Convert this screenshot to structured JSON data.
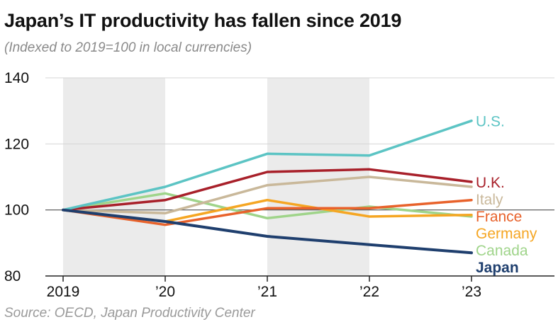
{
  "chart_data": {
    "type": "line",
    "title": "Japan’s IT productivity has fallen since 2019",
    "subtitle": "(Indexed to 2019=100 in local currencies)",
    "source": "Source: OECD, Japan Productivity Center",
    "categories": [
      "2019",
      "’20",
      "’21",
      "’22",
      "’23"
    ],
    "ylim": [
      80,
      140
    ],
    "yticks": [
      80,
      100,
      120,
      140
    ],
    "shaded_intervals": [
      [
        0,
        1
      ],
      [
        2,
        3
      ]
    ],
    "reference_line": 100,
    "series": [
      {
        "name": "U.S.",
        "color": "#5cc4c4",
        "bold": false,
        "values": [
          100,
          107,
          117,
          116.5,
          127
        ]
      },
      {
        "name": "U.K.",
        "color": "#a8202a",
        "bold": false,
        "values": [
          100,
          103,
          111.5,
          112.3,
          108.5
        ]
      },
      {
        "name": "Italy",
        "color": "#c9b89a",
        "bold": false,
        "values": [
          100,
          99,
          107.5,
          110,
          107
        ]
      },
      {
        "name": "France",
        "color": "#e8622b",
        "bold": false,
        "values": [
          100,
          95.5,
          100.5,
          100.5,
          103
        ]
      },
      {
        "name": "Germany",
        "color": "#f5a623",
        "bold": false,
        "values": [
          100,
          96.5,
          103,
          98,
          98.5
        ]
      },
      {
        "name": "Canada",
        "color": "#9fd48a",
        "bold": false,
        "values": [
          100,
          105,
          97.5,
          101,
          98
        ]
      },
      {
        "name": "Japan",
        "color": "#1f3f6e",
        "bold": true,
        "values": [
          100,
          96.5,
          92,
          89.5,
          87
        ]
      }
    ]
  }
}
